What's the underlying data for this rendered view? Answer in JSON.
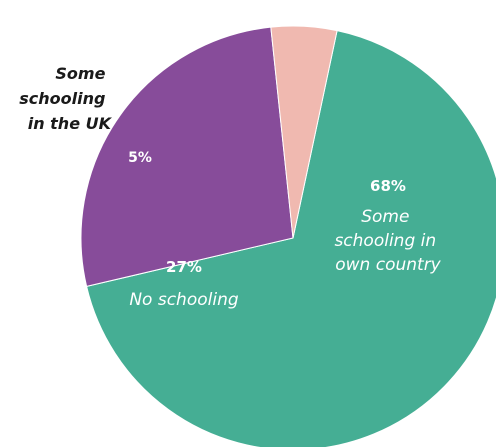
{
  "chart_data": {
    "type": "pie",
    "slices": [
      {
        "label": "Some schooling in own country",
        "label_lines": [
          "Some",
          "schooling in",
          "own country"
        ],
        "value": 68,
        "value_label": "68%",
        "color": "#45ae94"
      },
      {
        "label": "No schooling",
        "label_lines": [
          "No schooling"
        ],
        "value": 27,
        "value_label": "27%",
        "color": "#874c9a"
      },
      {
        "label": "Some schooling in the UK",
        "label_lines": [
          "Some",
          "schooling",
          "in the UK"
        ],
        "value": 5,
        "value_label": "5%",
        "color": "#f0b9b0"
      }
    ],
    "start_angle_deg": 12,
    "direction": "clockwise",
    "legend": "none"
  }
}
